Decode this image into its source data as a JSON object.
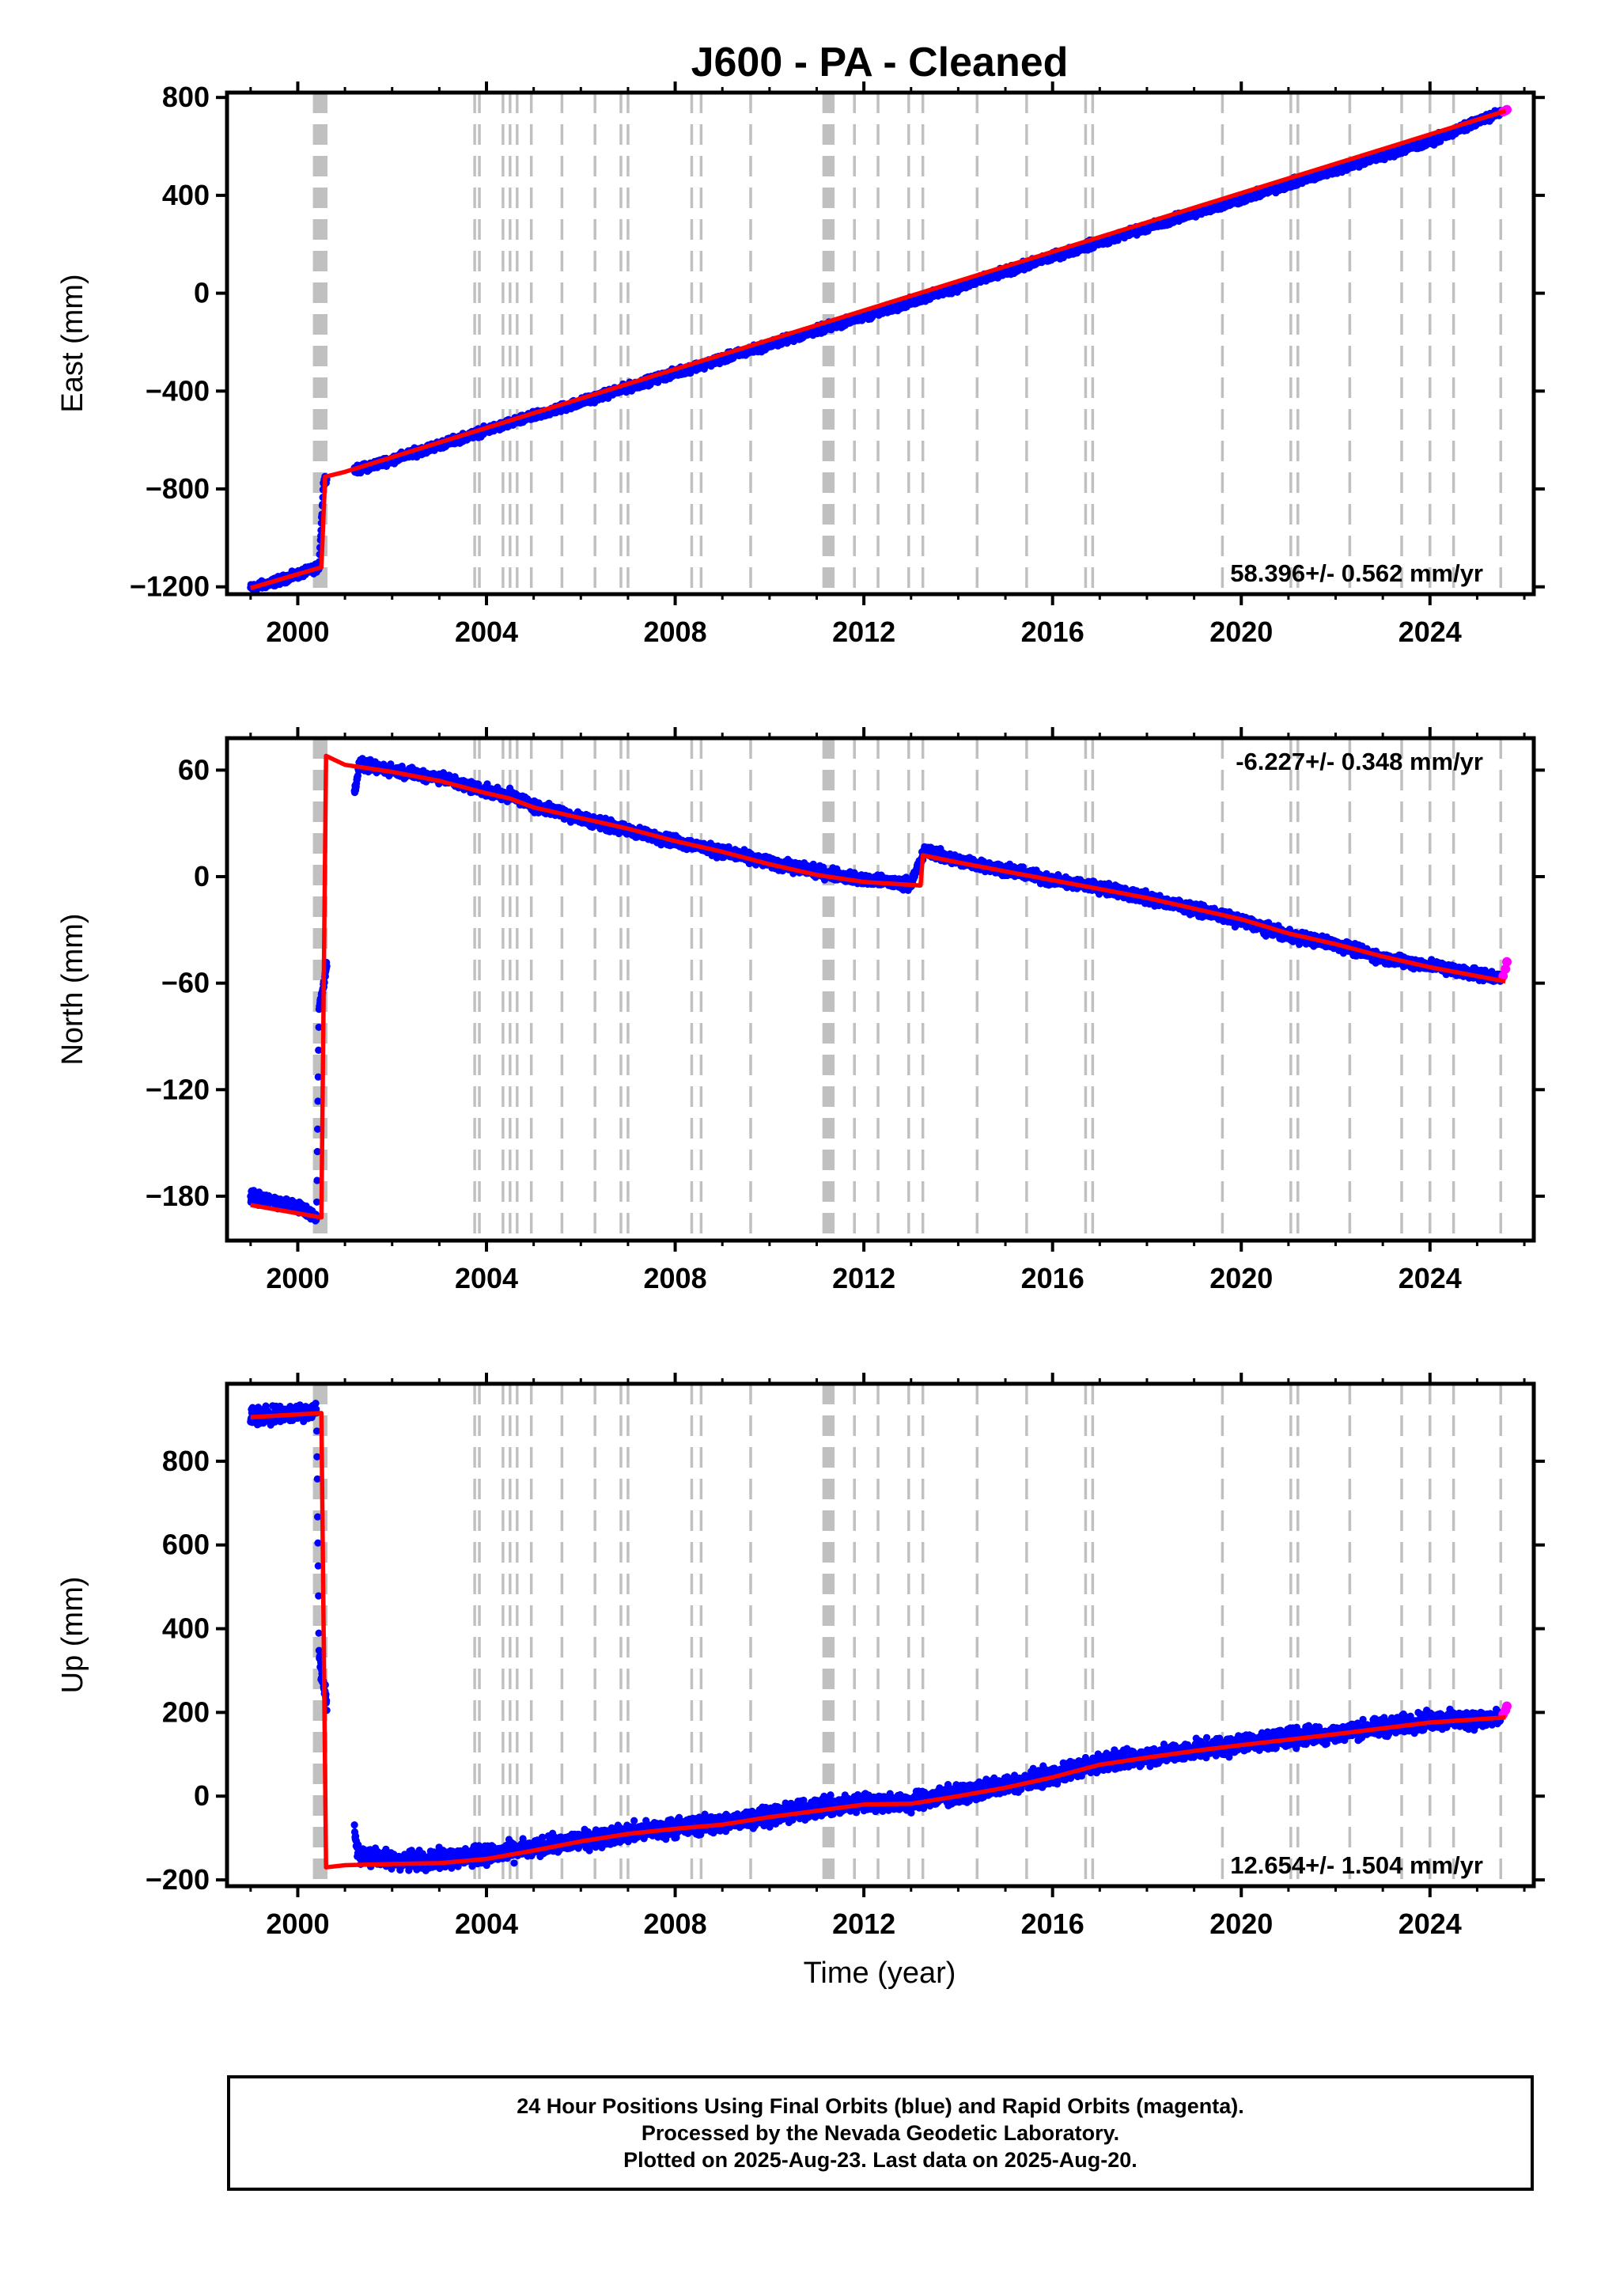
{
  "title": "J600  - PA - Cleaned",
  "xlabel": "Time (year)",
  "footer": {
    "line1": "24 Hour Positions Using Final Orbits (blue) and Rapid Orbits (magenta).",
    "line2": "Processed by the Nevada Geodetic Laboratory.",
    "line3": "Plotted on 2025-Aug-23. Last data on 2025-Aug-20."
  },
  "colors": {
    "final_orbits": "#0000ff",
    "rapid_orbits": "#ff00ff",
    "model": "#ff0000",
    "event_lines": "#c0c0c0"
  },
  "chart_data": [
    {
      "type": "scatter",
      "ylabel": "East (mm)",
      "rate_label": "58.396+/- 0.562 mm/yr",
      "rate_position": "bottom-right",
      "xlim": [
        1998.5,
        2026.2
      ],
      "ylim": [
        -1230,
        820
      ],
      "xticks": [
        "2000",
        "2004",
        "2008",
        "2012",
        "2016",
        "2020",
        "2024"
      ],
      "yticks": [
        "800",
        "400",
        "0",
        "-400",
        "-800",
        "-1200"
      ],
      "grid": false,
      "series": [
        {
          "role": "final_orbits",
          "x": [
            1999.0,
            1999.5,
            2000.0,
            2000.45,
            2000.55,
            2001.2,
            2002.0,
            2004.0,
            2006.0,
            2008.0,
            2010.0,
            2011.2,
            2012.0,
            2014.0,
            2016.0,
            2018.0,
            2020.0,
            2022.0,
            2024.0,
            2025.5
          ],
          "y": [
            -1205,
            -1180,
            -1150,
            -1120,
            -760,
            -725,
            -680,
            -560,
            -445,
            -325,
            -210,
            -140,
            -95,
            25,
            150,
            270,
            385,
            505,
            620,
            740
          ]
        },
        {
          "role": "rapid_orbits",
          "x": [
            2025.55,
            2025.6,
            2025.63
          ],
          "y": [
            742,
            746,
            750
          ]
        },
        {
          "role": "model",
          "x": [
            1999.0,
            2000.5,
            2000.58,
            2001.0,
            2025.6
          ],
          "y": [
            -1205,
            -1120,
            -750,
            -730,
            745
          ]
        }
      ]
    },
    {
      "type": "scatter",
      "ylabel": "North (mm)",
      "rate_label": "-6.227+/- 0.348 mm/yr",
      "rate_position": "top-right",
      "xlim": [
        1998.5,
        2026.2
      ],
      "ylim": [
        -205,
        78
      ],
      "xticks": [
        "2000",
        "2004",
        "2008",
        "2012",
        "2016",
        "2020",
        "2024"
      ],
      "yticks": [
        "60",
        "0",
        "-60",
        "-120",
        "-180"
      ],
      "grid": false,
      "series": [
        {
          "role": "final_orbits",
          "x": [
            1999.0,
            1999.5,
            2000.0,
            2000.4,
            2000.45,
            2000.5,
            2001.3,
            2002.0,
            2003.0,
            2004.0,
            2004.6,
            2005.0,
            2006.0,
            2007.0,
            2008.0,
            2009.0,
            2010.0,
            2011.0,
            2012.0,
            2013.0,
            2013.3,
            2014.0,
            2015.0,
            2016.0,
            2017.0,
            2018.0,
            2019.0,
            2020.0,
            2021.0,
            2022.0,
            2023.0,
            2024.0,
            2025.5
          ],
          "y": [
            -180,
            -183,
            -186,
            -192,
            -75,
            -68,
            63,
            60,
            56,
            48,
            45,
            40,
            33,
            26,
            20,
            14,
            8,
            3,
            -2,
            -4,
            15,
            9,
            4,
            -2,
            -6,
            -12,
            -18,
            -25,
            -33,
            -38,
            -46,
            -50,
            -57
          ]
        },
        {
          "role": "rapid_orbits",
          "x": [
            2025.55,
            2025.6,
            2025.63
          ],
          "y": [
            -56,
            -52,
            -48
          ]
        },
        {
          "role": "model",
          "x": [
            1999.0,
            2000.5,
            2000.6,
            2001.0,
            2001.5,
            2002.0,
            2003.0,
            2004.0,
            2004.5,
            2005.0,
            2006.0,
            2007.0,
            2008.0,
            2009.0,
            2010.0,
            2011.0,
            2012.0,
            2013.2,
            2013.25,
            2014.0,
            2015.0,
            2016.0,
            2017.0,
            2018.0,
            2019.0,
            2020.0,
            2021.0,
            2022.0,
            2023.0,
            2024.0,
            2025.6
          ],
          "y": [
            -185,
            -192,
            68,
            63,
            61,
            59,
            54,
            47,
            44,
            39,
            33,
            27,
            20,
            14,
            7,
            1,
            -3,
            -5,
            12,
            8,
            3,
            -2,
            -7,
            -12,
            -18,
            -24,
            -32,
            -38,
            -45,
            -51,
            -59
          ]
        }
      ]
    },
    {
      "type": "scatter",
      "ylabel": "Up (mm)",
      "rate_label": "12.654+/- 1.504 mm/yr",
      "rate_position": "bottom-right",
      "xlim": [
        1998.5,
        2026.2
      ],
      "ylim": [
        -215,
        985
      ],
      "xticks": [
        "2000",
        "2004",
        "2008",
        "2012",
        "2016",
        "2020",
        "2024"
      ],
      "yticks": [
        "800",
        "600",
        "400",
        "200",
        "0",
        "-200"
      ],
      "grid": false,
      "series": [
        {
          "role": "final_orbits",
          "x": [
            1999.0,
            1999.5,
            2000.0,
            2000.4,
            2000.45,
            2000.5,
            2001.3,
            2002.0,
            2003.0,
            2004.0,
            2005.0,
            2006.0,
            2007.0,
            2008.0,
            2009.0,
            2010.0,
            2011.0,
            2012.0,
            2013.0,
            2014.0,
            2015.0,
            2016.0,
            2017.0,
            2018.0,
            2019.0,
            2020.0,
            2021.0,
            2022.0,
            2023.0,
            2024.0,
            2025.5
          ],
          "y": [
            905,
            912,
            915,
            925,
            350,
            290,
            -140,
            -155,
            -150,
            -140,
            -125,
            -105,
            -88,
            -75,
            -65,
            -45,
            -30,
            -15,
            -15,
            5,
            25,
            50,
            80,
            95,
            110,
            125,
            140,
            150,
            165,
            180,
            185
          ]
        },
        {
          "role": "rapid_orbits",
          "x": [
            2025.55,
            2025.6,
            2025.63
          ],
          "y": [
            195,
            205,
            215
          ]
        },
        {
          "role": "model",
          "x": [
            1999.0,
            2000.5,
            2000.6,
            2001.0,
            2002.0,
            2003.0,
            2004.0,
            2005.0,
            2006.0,
            2007.0,
            2008.0,
            2009.0,
            2010.0,
            2011.0,
            2012.0,
            2013.0,
            2014.0,
            2015.0,
            2016.0,
            2017.0,
            2018.0,
            2019.0,
            2020.0,
            2021.0,
            2022.0,
            2023.0,
            2024.0,
            2025.6
          ],
          "y": [
            905,
            915,
            -170,
            -165,
            -162,
            -160,
            -150,
            -130,
            -108,
            -90,
            -78,
            -68,
            -50,
            -35,
            -20,
            -18,
            0,
            20,
            45,
            75,
            92,
            108,
            122,
            135,
            148,
            162,
            176,
            188
          ]
        }
      ]
    }
  ],
  "event_lines": [
    2000.35,
    2000.4,
    2000.45,
    2000.5,
    2000.55,
    2000.6,
    2003.75,
    2003.85,
    2004.35,
    2004.5,
    2004.65,
    2004.95,
    2005.6,
    2006.3,
    2006.85,
    2007.0,
    2008.35,
    2008.55,
    2009.6,
    2011.15,
    2011.2,
    2011.25,
    2011.3,
    2011.35,
    2011.8,
    2012.3,
    2012.95,
    2013.25,
    2014.4,
    2015.45,
    2016.7,
    2016.85,
    2019.6,
    2021.05,
    2021.2,
    2022.3,
    2023.4,
    2024.0,
    2024.5,
    2025.5
  ]
}
